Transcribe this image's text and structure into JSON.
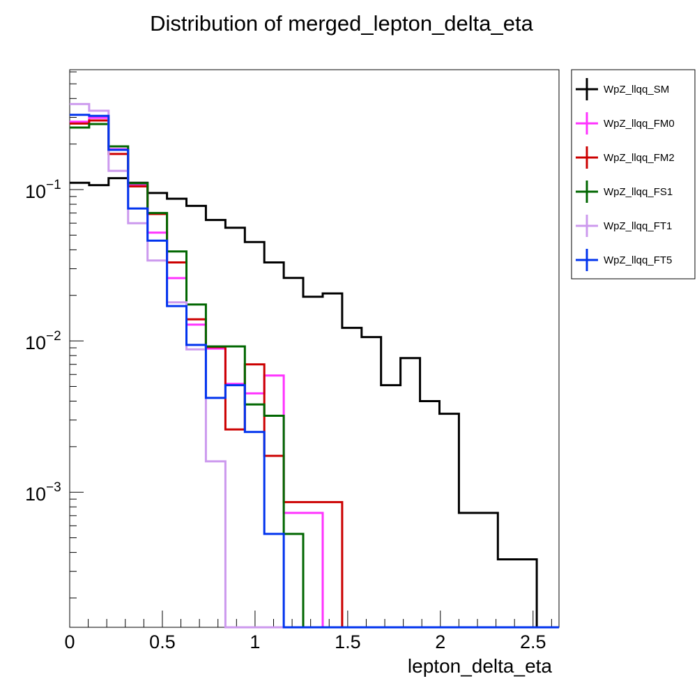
{
  "chart_data": {
    "type": "step",
    "title": "Distribution of merged_lepton_delta_eta",
    "xlabel": "lepton_delta_eta",
    "ylabel": "",
    "xlim": [
      0,
      2.64
    ],
    "ylim": [
      0.000128,
      0.62
    ],
    "yscale": "log",
    "grid": false,
    "legend_position": "right, outside plot",
    "bin_width": 0.105,
    "x_ticks": [
      {
        "value": 0,
        "label": "0"
      },
      {
        "value": 0.5,
        "label": "0.5"
      },
      {
        "value": 1,
        "label": "1"
      },
      {
        "value": 1.5,
        "label": "1.5"
      },
      {
        "value": 2,
        "label": "2"
      },
      {
        "value": 2.5,
        "label": "2.5"
      }
    ],
    "y_ticks": [
      {
        "value": 0.1,
        "mantissa": "10",
        "exponent": "−1"
      },
      {
        "value": 0.01,
        "mantissa": "10",
        "exponent": "−2"
      },
      {
        "value": 0.001,
        "mantissa": "10",
        "exponent": "−3"
      }
    ],
    "series": [
      {
        "name": "WpZ_llqq_SM",
        "color": "#000000",
        "values": [
          0.111,
          0.107,
          0.119,
          0.111,
          0.095,
          0.087,
          0.078,
          0.063,
          0.056,
          0.045,
          0.033,
          0.0261,
          0.0196,
          0.0206,
          0.0122,
          0.0106,
          0.0051,
          0.0077,
          0.004,
          0.0033,
          0.00073,
          0.00073,
          0.00036,
          0.00036,
          0,
          0
        ]
      },
      {
        "name": "WpZ_llqq_FM0",
        "color": "#ff33ff",
        "values": [
          0.281,
          0.298,
          0.185,
          0.108,
          0.052,
          0.026,
          0.0128,
          0.0089,
          0.0052,
          0.0045,
          0.0059,
          0.00073,
          0.00073,
          0,
          0,
          0,
          0,
          0,
          0,
          0,
          0,
          0,
          0,
          0,
          0,
          0
        ]
      },
      {
        "name": "WpZ_llqq_FM2",
        "color": "#cc0000",
        "values": [
          0.273,
          0.286,
          0.172,
          0.105,
          0.069,
          0.033,
          0.0139,
          0.0091,
          0.0026,
          0.007,
          0.00174,
          0.00086,
          0.00086,
          0.00086,
          0,
          0,
          0,
          0,
          0,
          0,
          0,
          0,
          0,
          0,
          0,
          0
        ]
      },
      {
        "name": "WpZ_llqq_FS1",
        "color": "#006600",
        "values": [
          0.257,
          0.271,
          0.193,
          0.11,
          0.07,
          0.039,
          0.0174,
          0.0092,
          0.0092,
          0.0038,
          0.0032,
          0.00053,
          0,
          0,
          0,
          0,
          0,
          0,
          0,
          0,
          0,
          0,
          0,
          0,
          0,
          0
        ]
      },
      {
        "name": "WpZ_llqq_FT1",
        "color": "#cc99ee",
        "values": [
          0.368,
          0.332,
          0.133,
          0.06,
          0.034,
          0.018,
          0.0088,
          0.0016,
          0,
          0,
          0,
          0,
          0,
          0,
          0,
          0,
          0,
          0,
          0,
          0,
          0,
          0,
          0,
          0,
          0,
          0
        ]
      },
      {
        "name": "WpZ_llqq_FT5",
        "color": "#0033ee",
        "values": [
          0.312,
          0.307,
          0.183,
          0.075,
          0.046,
          0.017,
          0.0094,
          0.0042,
          0.0051,
          0.0025,
          0.00053,
          0,
          0,
          0,
          0,
          0,
          0,
          0,
          0,
          0,
          0,
          0,
          0,
          0,
          0,
          0
        ]
      }
    ]
  }
}
